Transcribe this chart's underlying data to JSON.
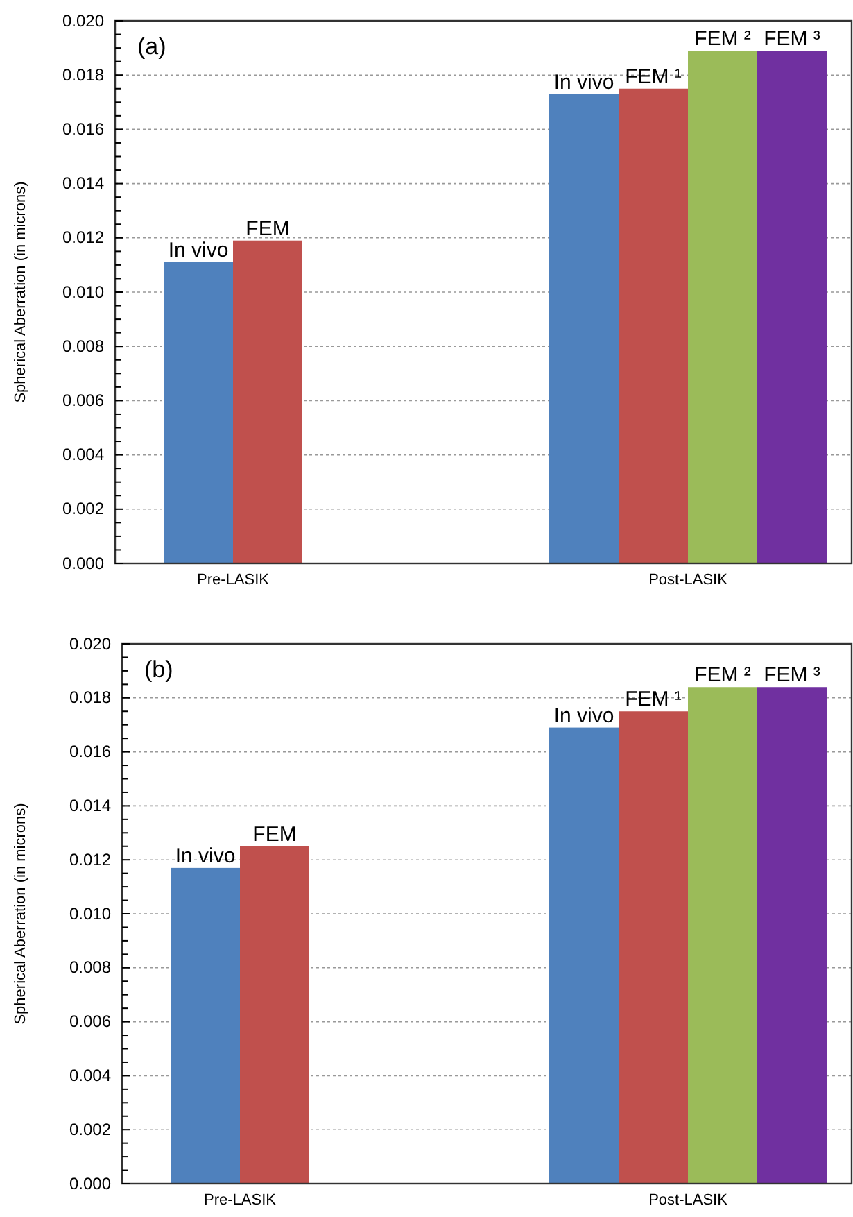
{
  "chart_data": [
    {
      "type": "bar",
      "ylabel": "Spherical Aberration (in microns)",
      "annotations": [
        "(a)"
      ],
      "categories": [
        "Pre-LASIK",
        "Post-LASIK"
      ],
      "series": [
        {
          "name": "In vivo",
          "color": "#4f81bd",
          "values": [
            0.0111,
            0.0173
          ]
        },
        {
          "name": "FEM",
          "color": "#c0504d",
          "values": [
            0.0119,
            null
          ]
        },
        {
          "name": "FEM ¹",
          "color": "#c0504d",
          "values": [
            null,
            0.0175
          ]
        },
        {
          "name": "FEM ²",
          "color": "#9bbb59",
          "values": [
            null,
            0.0189
          ]
        },
        {
          "name": "FEM ³",
          "color": "#7030a0",
          "values": [
            null,
            0.0189
          ]
        }
      ],
      "ylim": [
        0,
        0.02
      ],
      "yticks": [
        {
          "value": 0,
          "label": "0.000"
        },
        {
          "value": 0.0005,
          "label": null
        },
        {
          "value": 0.001,
          "label": null
        },
        {
          "value": 0.0015,
          "label": null
        },
        {
          "value": 0.002,
          "label": "0.002"
        },
        {
          "value": 0.0025,
          "label": null
        },
        {
          "value": 0.003,
          "label": null
        },
        {
          "value": 0.0035,
          "label": null
        },
        {
          "value": 0.004,
          "label": "0.004"
        },
        {
          "value": 0.0045,
          "label": null
        },
        {
          "value": 0.005,
          "label": null
        },
        {
          "value": 0.0055,
          "label": null
        },
        {
          "value": 0.006,
          "label": "0.006"
        },
        {
          "value": 0.0065,
          "label": null
        },
        {
          "value": 0.007,
          "label": null
        },
        {
          "value": 0.0075,
          "label": null
        },
        {
          "value": 0.008,
          "label": "0.008"
        },
        {
          "value": 0.0085,
          "label": null
        },
        {
          "value": 0.009,
          "label": null
        },
        {
          "value": 0.0095,
          "label": null
        },
        {
          "value": 0.01,
          "label": "0.010"
        },
        {
          "value": 0.0105,
          "label": null
        },
        {
          "value": 0.011,
          "label": null
        },
        {
          "value": 0.0115,
          "label": null
        },
        {
          "value": 0.012,
          "label": "0.012"
        },
        {
          "value": 0.0125,
          "label": null
        },
        {
          "value": 0.013,
          "label": null
        },
        {
          "value": 0.0135,
          "label": null
        },
        {
          "value": 0.014,
          "label": "0.014"
        },
        {
          "value": 0.0145,
          "label": null
        },
        {
          "value": 0.015,
          "label": null
        },
        {
          "value": 0.0155,
          "label": null
        },
        {
          "value": 0.016,
          "label": "0.016"
        },
        {
          "value": 0.0165,
          "label": null
        },
        {
          "value": 0.017,
          "label": null
        },
        {
          "value": 0.0175,
          "label": null
        },
        {
          "value": 0.018,
          "label": "0.018"
        },
        {
          "value": 0.0185,
          "label": null
        },
        {
          "value": 0.019,
          "label": null
        },
        {
          "value": 0.0195,
          "label": null
        },
        {
          "value": 0.02,
          "label": "0.020"
        }
      ],
      "grid": "y"
    },
    {
      "type": "bar",
      "ylabel": "Spherical Aberration (in microns)",
      "annotations": [
        "(b)"
      ],
      "categories": [
        "Pre-LASIK",
        "Post-LASIK"
      ],
      "series": [
        {
          "name": "In vivo",
          "color": "#4f81bd",
          "values": [
            0.0117,
            0.0169
          ]
        },
        {
          "name": "FEM",
          "color": "#c0504d",
          "values": [
            0.0125,
            null
          ]
        },
        {
          "name": "FEM ¹",
          "color": "#c0504d",
          "values": [
            null,
            0.0175
          ]
        },
        {
          "name": "FEM ²",
          "color": "#9bbb59",
          "values": [
            null,
            0.0184
          ]
        },
        {
          "name": "FEM ³",
          "color": "#7030a0",
          "values": [
            null,
            0.0184
          ]
        }
      ],
      "ylim": [
        0,
        0.02
      ],
      "yticks": [
        {
          "value": 0,
          "label": "0.000"
        },
        {
          "value": 0.0005,
          "label": null
        },
        {
          "value": 0.001,
          "label": null
        },
        {
          "value": 0.0015,
          "label": null
        },
        {
          "value": 0.002,
          "label": "0.002"
        },
        {
          "value": 0.0025,
          "label": null
        },
        {
          "value": 0.003,
          "label": null
        },
        {
          "value": 0.0035,
          "label": null
        },
        {
          "value": 0.004,
          "label": "0.004"
        },
        {
          "value": 0.0045,
          "label": null
        },
        {
          "value": 0.005,
          "label": null
        },
        {
          "value": 0.0055,
          "label": null
        },
        {
          "value": 0.006,
          "label": "0.006"
        },
        {
          "value": 0.0065,
          "label": null
        },
        {
          "value": 0.007,
          "label": null
        },
        {
          "value": 0.0075,
          "label": null
        },
        {
          "value": 0.008,
          "label": "0.008"
        },
        {
          "value": 0.0085,
          "label": null
        },
        {
          "value": 0.009,
          "label": null
        },
        {
          "value": 0.0095,
          "label": null
        },
        {
          "value": 0.01,
          "label": "0.010"
        },
        {
          "value": 0.0105,
          "label": null
        },
        {
          "value": 0.011,
          "label": null
        },
        {
          "value": 0.0115,
          "label": null
        },
        {
          "value": 0.012,
          "label": "0.012"
        },
        {
          "value": 0.0125,
          "label": null
        },
        {
          "value": 0.013,
          "label": null
        },
        {
          "value": 0.0135,
          "label": null
        },
        {
          "value": 0.014,
          "label": "0.014"
        },
        {
          "value": 0.0145,
          "label": null
        },
        {
          "value": 0.015,
          "label": null
        },
        {
          "value": 0.0155,
          "label": null
        },
        {
          "value": 0.016,
          "label": "0.016"
        },
        {
          "value": 0.0165,
          "label": null
        },
        {
          "value": 0.017,
          "label": null
        },
        {
          "value": 0.0175,
          "label": null
        },
        {
          "value": 0.018,
          "label": "0.018"
        },
        {
          "value": 0.0185,
          "label": null
        },
        {
          "value": 0.019,
          "label": null
        },
        {
          "value": 0.0195,
          "label": null
        },
        {
          "value": 0.02,
          "label": "0.020"
        }
      ],
      "grid": "y"
    }
  ]
}
